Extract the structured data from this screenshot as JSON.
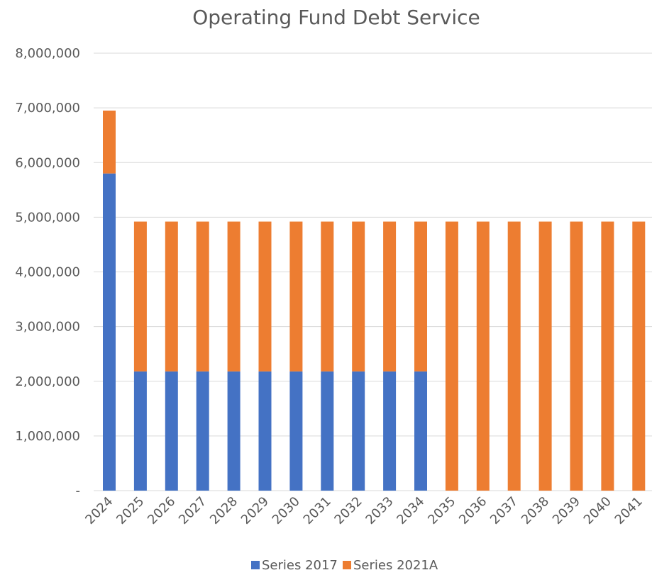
{
  "chart_data": {
    "type": "bar",
    "stacked": true,
    "title": "Operating Fund Debt Service",
    "xlabel": "",
    "ylabel": "",
    "categories": [
      "2024",
      "2025",
      "2026",
      "2027",
      "2028",
      "2029",
      "2030",
      "2031",
      "2032",
      "2033",
      "2034",
      "2035",
      "2036",
      "2037",
      "2038",
      "2039",
      "2040",
      "2041"
    ],
    "series": [
      {
        "name": "Series 2017",
        "color": "#4472c4",
        "values": [
          5800000,
          2180000,
          2180000,
          2180000,
          2180000,
          2180000,
          2180000,
          2180000,
          2180000,
          2180000,
          2180000,
          0,
          0,
          0,
          0,
          0,
          0,
          0
        ]
      },
      {
        "name": "Series 2021A",
        "color": "#ed7d31",
        "values": [
          1150000,
          2740000,
          2740000,
          2740000,
          2740000,
          2740000,
          2740000,
          2740000,
          2740000,
          2740000,
          2740000,
          4920000,
          4920000,
          4920000,
          4920000,
          4920000,
          4920000,
          4920000
        ]
      }
    ],
    "ylim": [
      0,
      8000000
    ],
    "y_ticks": [
      0,
      1000000,
      2000000,
      3000000,
      4000000,
      5000000,
      6000000,
      7000000,
      8000000
    ],
    "y_tick_labels": [
      "-",
      "1,000,000",
      "2,000,000",
      "3,000,000",
      "4,000,000",
      "5,000,000",
      "6,000,000",
      "7,000,000",
      "8,000,000"
    ],
    "grid": true,
    "legend_position": "bottom"
  }
}
